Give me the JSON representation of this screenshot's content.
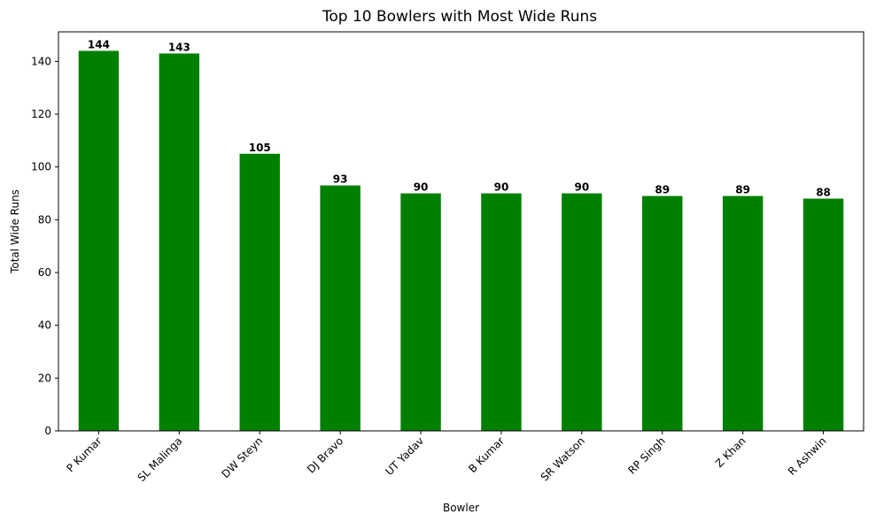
{
  "chart_data": {
    "type": "bar",
    "title": "Top 10 Bowlers with Most Wide Runs",
    "xlabel": "Bowler",
    "ylabel": "Total Wide Runs",
    "categories": [
      "P Kumar",
      "SL Malinga",
      "DW Steyn",
      "DJ Bravo",
      "UT Yadav",
      "B Kumar",
      "SR Watson",
      "RP Singh",
      "Z Khan",
      "R Ashwin"
    ],
    "values": [
      144,
      143,
      105,
      93,
      90,
      90,
      90,
      89,
      89,
      88
    ],
    "ylim": [
      0,
      151.2
    ],
    "yticks": [
      0,
      20,
      40,
      60,
      80,
      100,
      120,
      140
    ],
    "bar_color": "#008000",
    "grid": false,
    "legend": "none"
  }
}
